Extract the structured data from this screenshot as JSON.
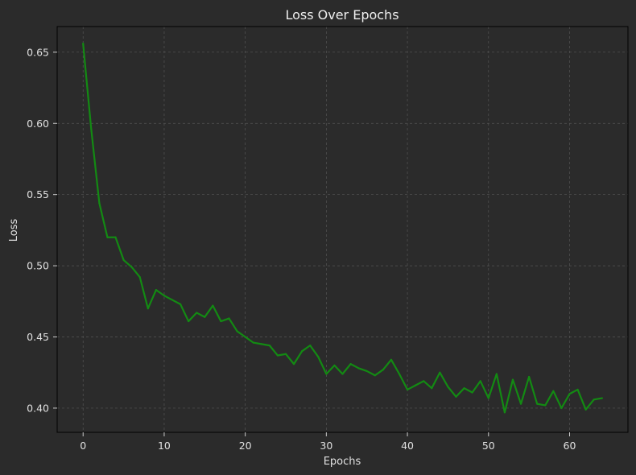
{
  "chart_data": {
    "type": "line",
    "title": "Loss Over Epochs",
    "xlabel": "Epochs",
    "ylabel": "Loss",
    "xlim": [
      -3.2,
      67.2
    ],
    "ylim": [
      0.383,
      0.668
    ],
    "xticks": [
      "0",
      "10",
      "20",
      "30",
      "40",
      "50",
      "60"
    ],
    "yticks": [
      "0.40",
      "0.45",
      "0.50",
      "0.55",
      "0.60",
      "0.65"
    ],
    "grid": true,
    "colors": {
      "background": "#2b2b2b",
      "plot_background": "#2b2b2b",
      "line": "#138a13",
      "grid": "#555555",
      "spine": "#000000",
      "text": "#e0e0e0"
    },
    "series": [
      {
        "x": [
          0,
          1,
          2,
          3,
          4,
          5,
          6,
          7,
          8,
          9,
          10,
          11,
          12,
          13,
          14,
          15,
          16,
          17,
          18,
          19,
          20,
          21,
          22,
          23,
          24,
          25,
          26,
          27,
          28,
          29,
          30,
          31,
          32,
          33,
          34,
          35,
          36,
          37,
          38,
          39,
          40,
          41,
          42,
          43,
          44,
          45,
          46,
          47,
          48,
          49,
          50,
          51,
          52,
          53,
          54,
          55,
          56,
          57,
          58,
          59,
          60,
          61,
          62,
          63,
          64
        ],
        "values": [
          0.656,
          0.596,
          0.544,
          0.52,
          0.52,
          0.504,
          0.499,
          0.492,
          0.47,
          0.483,
          0.479,
          0.476,
          0.473,
          0.461,
          0.467,
          0.464,
          0.472,
          0.461,
          0.463,
          0.454,
          0.45,
          0.446,
          0.445,
          0.444,
          0.437,
          0.438,
          0.431,
          0.44,
          0.444,
          0.436,
          0.424,
          0.43,
          0.424,
          0.431,
          0.428,
          0.426,
          0.423,
          0.427,
          0.434,
          0.424,
          0.413,
          0.416,
          0.419,
          0.414,
          0.425,
          0.415,
          0.408,
          0.414,
          0.411,
          0.419,
          0.407,
          0.424,
          0.397,
          0.42,
          0.403,
          0.422,
          0.403,
          0.402,
          0.412,
          0.4,
          0.41,
          0.413,
          0.399,
          0.406,
          0.407
        ]
      }
    ]
  }
}
